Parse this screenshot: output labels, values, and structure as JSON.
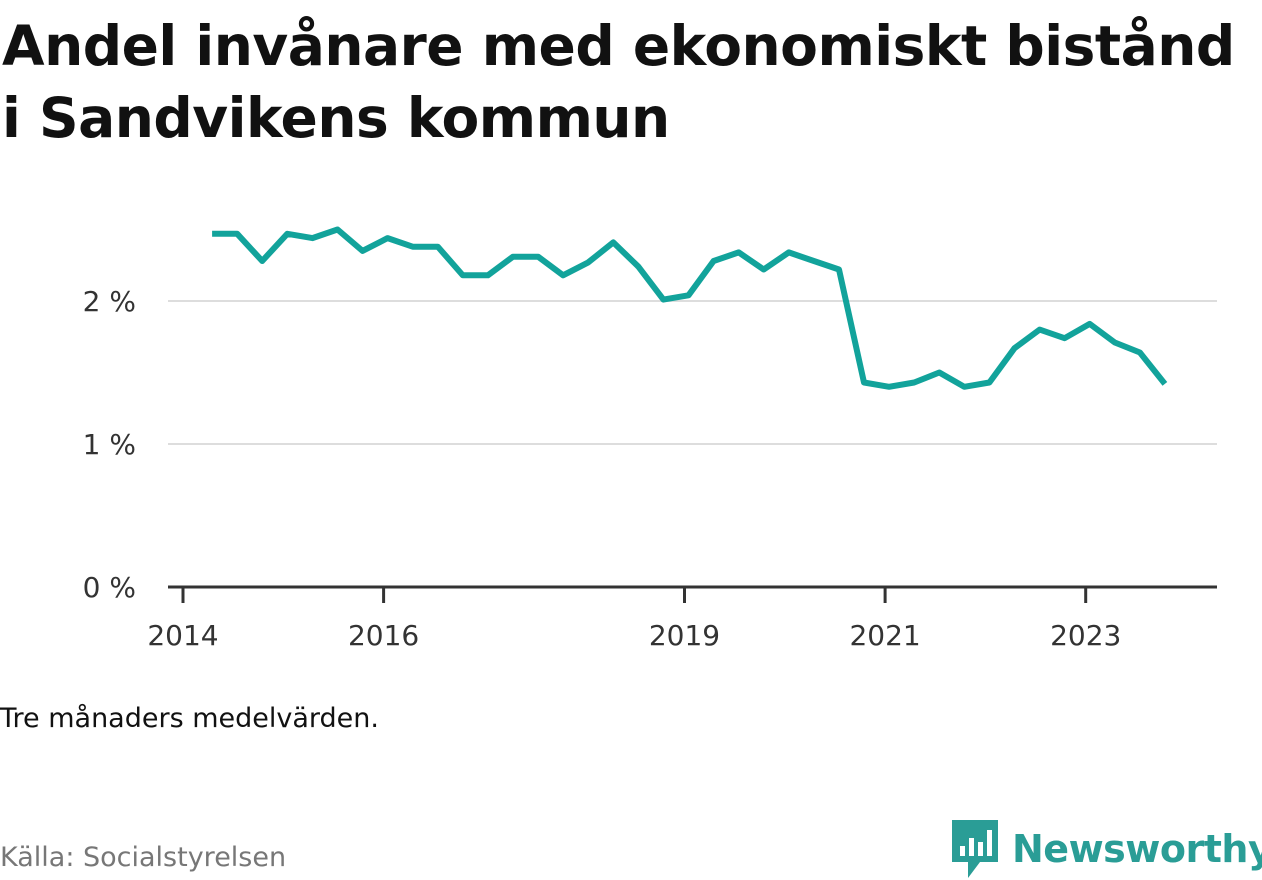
{
  "title": "Andel invånare med ekonomiskt bistånd i Sandvikens kommun",
  "note": "Tre månaders medelvärden.",
  "source": "Källa: Socialstyrelsen",
  "logo_text": "Newsworthy",
  "colors": {
    "line": "#12a39b",
    "grid": "#dddddd",
    "axis": "#333333",
    "logo": "#2a9d96"
  },
  "chart_data": {
    "type": "line",
    "title": "Andel invånare med ekonomiskt bistånd i Sandvikens kommun",
    "xlabel": "",
    "ylabel": "",
    "ylim": [
      0,
      3
    ],
    "y_ticks": [
      {
        "value": 0,
        "label": "0 %"
      },
      {
        "value": 1,
        "label": "1 %"
      },
      {
        "value": 2,
        "label": "2 %"
      }
    ],
    "x_ticks": [
      {
        "value": 2014,
        "label": "2014"
      },
      {
        "value": 2016,
        "label": "2016"
      },
      {
        "value": 2019,
        "label": "2019"
      },
      {
        "value": 2021,
        "label": "2021"
      },
      {
        "value": 2023,
        "label": "2023"
      }
    ],
    "grid": true,
    "series": [
      {
        "x": [
          2014.29,
          2014.54,
          2014.79,
          2015.04,
          2015.29,
          2015.54,
          2015.79,
          2016.04,
          2016.29,
          2016.54,
          2016.79,
          2017.04,
          2017.29,
          2017.54,
          2017.79,
          2018.04,
          2018.29,
          2018.54,
          2018.79,
          2019.04,
          2019.29,
          2019.54,
          2019.79,
          2020.04,
          2020.29,
          2020.54,
          2020.79,
          2021.04,
          2021.29,
          2021.54,
          2021.79,
          2022.04,
          2022.29,
          2022.54,
          2022.79,
          2023.04,
          2023.29,
          2023.54,
          2023.79
        ],
        "values": [
          2.47,
          2.47,
          2.28,
          2.47,
          2.44,
          2.5,
          2.35,
          2.44,
          2.38,
          2.38,
          2.18,
          2.18,
          2.31,
          2.31,
          2.18,
          2.27,
          2.41,
          2.24,
          2.01,
          2.04,
          2.28,
          2.34,
          2.22,
          2.34,
          2.28,
          2.22,
          1.43,
          1.4,
          1.43,
          1.5,
          1.4,
          1.43,
          1.67,
          1.8,
          1.74,
          1.84,
          1.71,
          1.64,
          1.42
        ]
      }
    ]
  }
}
